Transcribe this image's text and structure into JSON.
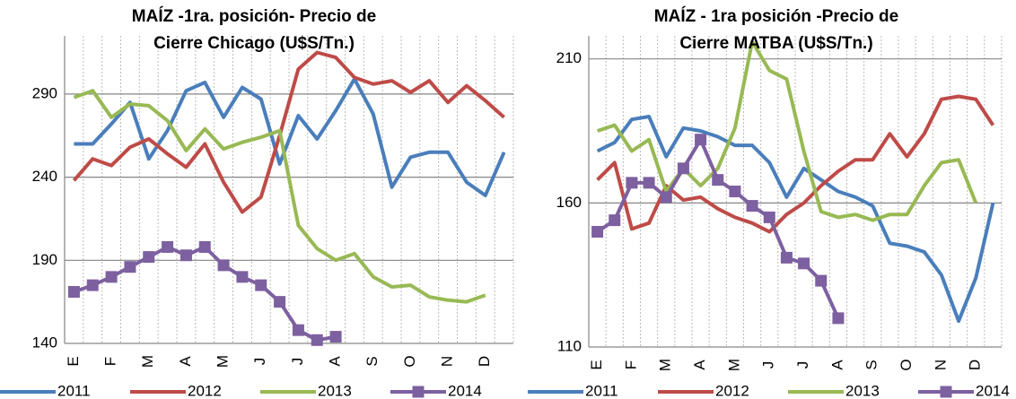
{
  "chart_data": [
    {
      "type": "line",
      "title": "MAÍZ -1ra. posición- Precio de Cierre Chicago (U$S/Tn.)",
      "categories": [
        "E",
        null,
        "F",
        null,
        "M",
        null,
        "A",
        null,
        "M",
        null,
        "J",
        null,
        "J",
        null,
        "A",
        null,
        "S",
        null,
        "O",
        null,
        "N",
        null,
        "D",
        null
      ],
      "ylim": [
        140,
        325
      ],
      "yticks": [
        140,
        190,
        240,
        290
      ],
      "grid": true,
      "series": [
        {
          "name": "2011",
          "color": "#4a7ebb",
          "values": [
            260,
            260,
            272,
            285,
            251,
            268,
            292,
            297,
            276,
            294,
            287,
            248,
            277,
            263,
            280,
            299,
            278,
            234,
            252,
            255,
            255,
            237,
            229,
            255
          ]
        },
        {
          "name": "2012",
          "color": "#be4b48",
          "values": [
            238,
            251,
            247,
            258,
            263,
            254,
            246,
            260,
            237,
            219,
            228,
            265,
            305,
            315,
            312,
            300,
            296,
            298,
            291,
            298,
            285,
            295,
            286,
            276
          ]
        },
        {
          "name": "2013",
          "color": "#98b954",
          "values": [
            288,
            292,
            276,
            284,
            283,
            274,
            256,
            269,
            257,
            261,
            264,
            268,
            211,
            197,
            190,
            194,
            180,
            174,
            175,
            168,
            166,
            165,
            169,
            null
          ]
        },
        {
          "name": "2014",
          "color": "#7d60a0",
          "marker": "square",
          "values": [
            171,
            175,
            180,
            186,
            192,
            198,
            193,
            198,
            187,
            180,
            175,
            165,
            148,
            142,
            144,
            null,
            null,
            null,
            null,
            null,
            null,
            null,
            null,
            null
          ]
        }
      ]
    },
    {
      "type": "line",
      "title": "MAÍZ - 1ra posición -Precio de Cierre MATBA (U$S/Tn.)",
      "categories": [
        "E",
        null,
        "F",
        null,
        "M",
        null,
        "A",
        null,
        "M",
        null,
        "J",
        null,
        "J",
        null,
        "A",
        null,
        "S",
        null,
        "O",
        null,
        "N",
        null,
        "D",
        null
      ],
      "ylim": [
        110,
        218
      ],
      "yticks": [
        110,
        160,
        210
      ],
      "grid": true,
      "series": [
        {
          "name": "2011",
          "color": "#4a7ebb",
          "values": [
            178,
            181,
            189,
            190,
            176,
            186,
            185,
            183,
            180,
            180,
            174,
            162,
            172,
            168,
            164,
            162,
            159,
            146,
            145,
            143,
            135,
            119,
            134,
            160
          ]
        },
        {
          "name": "2012",
          "color": "#be4b48",
          "values": [
            168,
            174,
            151,
            153,
            166,
            161,
            162,
            158,
            155,
            153,
            150,
            156,
            160,
            166,
            171,
            175,
            175,
            184,
            176,
            184,
            196,
            197,
            196,
            187
          ]
        },
        {
          "name": "2013",
          "color": "#98b954",
          "values": [
            185,
            187,
            178,
            182,
            164,
            172,
            166,
            172,
            186,
            216,
            206,
            203,
            178,
            157,
            155,
            156,
            154,
            156,
            156,
            166,
            174,
            175,
            160,
            null
          ]
        },
        {
          "name": "2014",
          "color": "#7d60a0",
          "marker": "square",
          "values": [
            150,
            154,
            167,
            167,
            162,
            172,
            182,
            168,
            164,
            159,
            155,
            141,
            139,
            133,
            120,
            null,
            null,
            null,
            null,
            null,
            null,
            null,
            null,
            null
          ]
        }
      ]
    }
  ]
}
